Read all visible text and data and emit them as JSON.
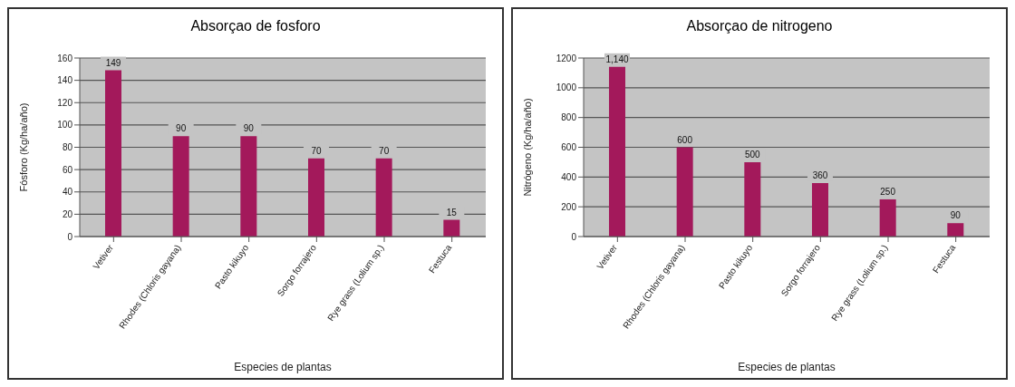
{
  "chart_data": [
    {
      "type": "bar",
      "title": "Absorçao de fosforo",
      "xlabel": "Especies de plantas",
      "ylabel": "Fósforo (Kg/ha/año)",
      "categories": [
        "Vetiver",
        "Rhodes (Chloris gayana)",
        "Pasto kikuyo",
        "Sorgo forrajero",
        "Rye grass (Lolium sp.)",
        "Festuca"
      ],
      "values": [
        149,
        90,
        90,
        70,
        70,
        15
      ],
      "color": "#a3195b",
      "ylim": [
        0,
        160
      ],
      "yticks": [
        0,
        20,
        40,
        60,
        80,
        100,
        120,
        140,
        160
      ],
      "grid": "y",
      "data_labels": true
    },
    {
      "type": "bar",
      "title": "Absorçao de nitrogeno",
      "xlabel": "Especies de plantas",
      "ylabel": "Nitrógeno (Kg/ha/año)",
      "categories": [
        "Vetiver",
        "Rhodes (Chloris gayana)",
        "Pasto kikuyo",
        "Sorgo forrajero",
        "Rye grass (Lolium sp.)",
        "Festuca"
      ],
      "values": [
        1140,
        600,
        500,
        360,
        250,
        90
      ],
      "color": "#a3195b",
      "value_labels": [
        "1,140",
        "600",
        "500",
        "360",
        "250",
        "90"
      ],
      "ylim": [
        0,
        1200
      ],
      "yticks": [
        0,
        200,
        400,
        600,
        800,
        1000,
        1200
      ],
      "grid": "y"
    }
  ]
}
